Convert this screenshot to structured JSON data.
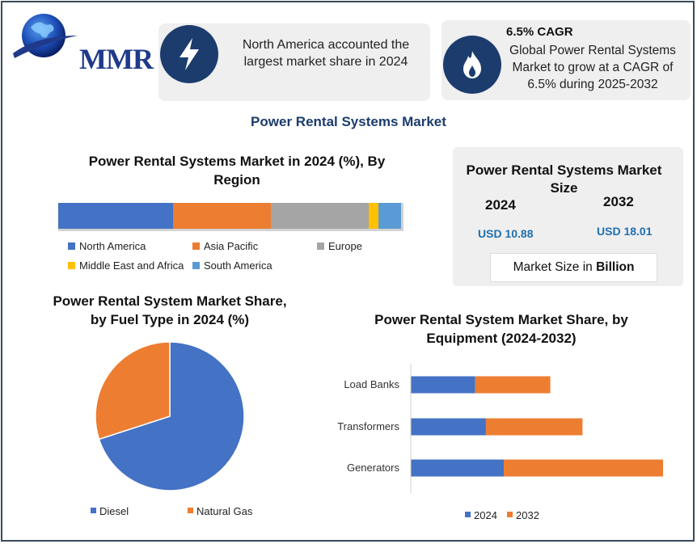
{
  "logo": {
    "text": "MMR"
  },
  "highlights": [
    {
      "icon": "lightning-icon",
      "text": "North America accounted the largest market share in 2024"
    },
    {
      "icon": "flame-icon",
      "title": "6.5% CAGR",
      "text": "Global Power Rental Systems Market to grow at a CAGR of 6.5% during 2025-2032"
    }
  ],
  "main_title": "Power Rental Systems Market",
  "market_size": {
    "title": "Power Rental Systems Market Size",
    "year_a": "2024",
    "value_a": "USD 10.88",
    "year_b": "2032",
    "value_b": "USD 18.01",
    "unit_prefix": "Market Size in ",
    "unit_bold": "Billion"
  },
  "colors": {
    "blue": "#4472c4",
    "orange": "#ed7d31",
    "gray": "#a5a5a5",
    "yellow": "#ffc000",
    "lightblue": "#5b9bd5",
    "navy": "#1c3c6e"
  },
  "chart_data": [
    {
      "type": "bar",
      "orientation": "horizontal-stacked-100",
      "title": "Power Rental Systems Market in 2024 (%), By Region",
      "series": [
        {
          "name": "North America",
          "value": 33.5,
          "color": "#4472c4"
        },
        {
          "name": "Asia Pacific",
          "value": 28.5,
          "color": "#ed7d31"
        },
        {
          "name": "Europe",
          "value": 28.5,
          "color": "#a5a5a5"
        },
        {
          "name": "Middle East and Africa",
          "value": 3,
          "color": "#ffc000"
        },
        {
          "name": "South America",
          "value": 6.5,
          "color": "#5b9bd5"
        }
      ],
      "legend": "bottom"
    },
    {
      "type": "pie",
      "title": "Power Rental System Market Share, by Fuel Type in 2024 (%)",
      "slices": [
        {
          "name": "Diesel",
          "value": 70,
          "color": "#4472c4"
        },
        {
          "name": "Natural Gas",
          "value": 30,
          "color": "#ed7d31"
        }
      ],
      "legend": "bottom"
    },
    {
      "type": "bar",
      "orientation": "horizontal-stacked",
      "title": "Power Rental System Market Share, by Equipment (2024-2032)",
      "categories": [
        "Load Banks",
        "Transformers",
        "Generators"
      ],
      "series": [
        {
          "name": "2024",
          "values": [
            1.8,
            2.1,
            2.6
          ],
          "color": "#4472c4"
        },
        {
          "name": "2032",
          "values": [
            2.1,
            2.7,
            4.9
          ],
          "color": "#ed7d31"
        }
      ],
      "xlim": [
        0,
        8
      ],
      "legend": "bottom"
    }
  ]
}
